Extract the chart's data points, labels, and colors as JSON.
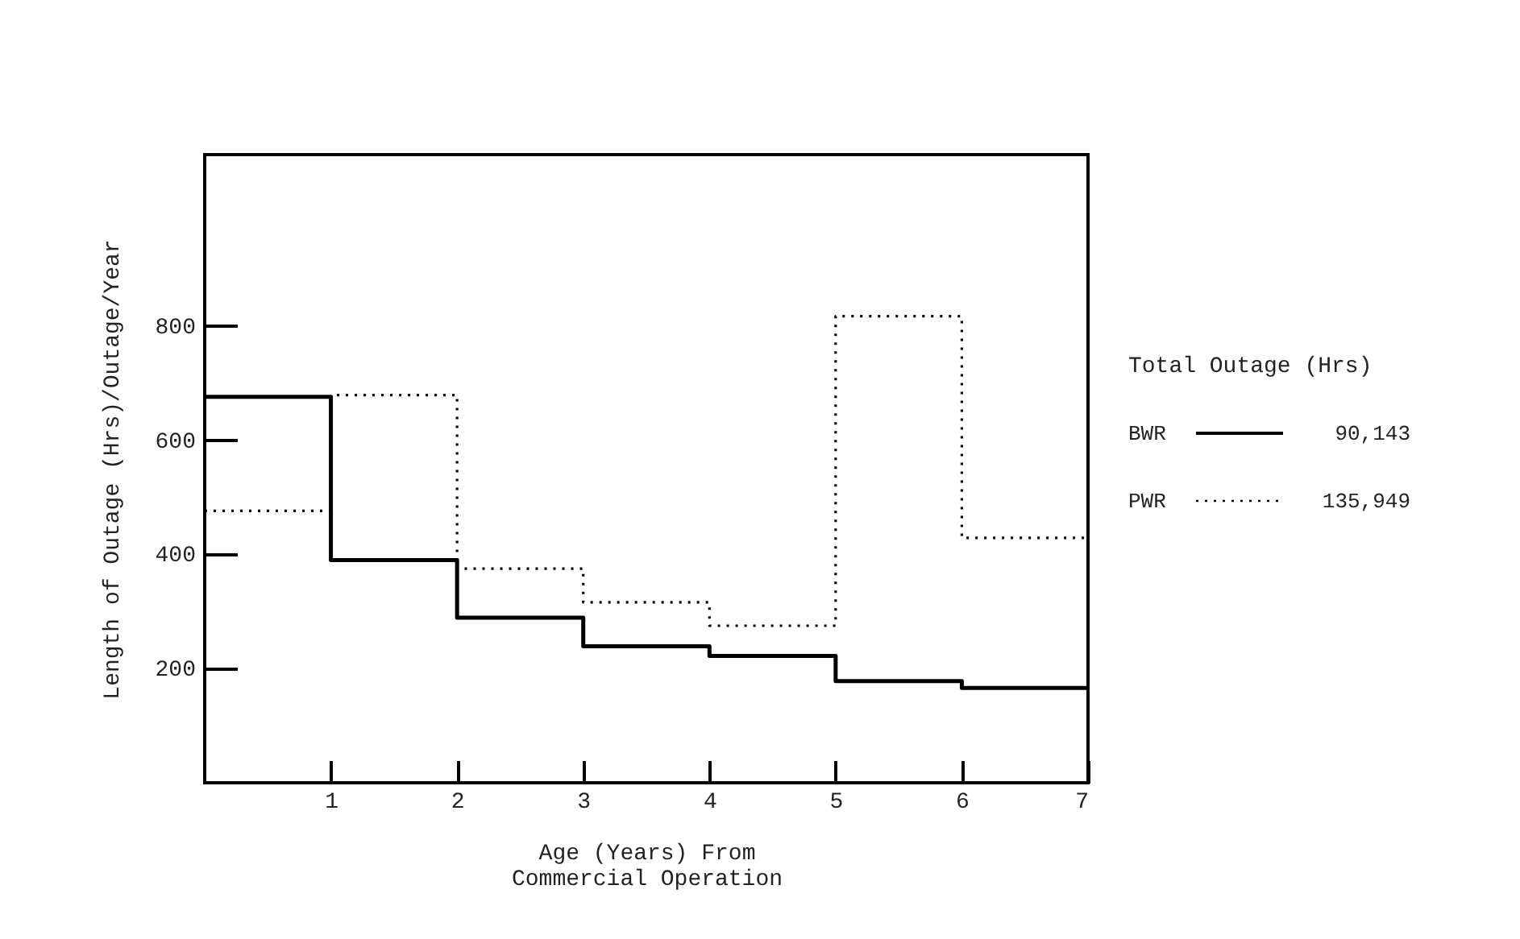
{
  "chart_data": {
    "type": "step",
    "xlabel": "Age (Years) From\nCommercial Operation",
    "ylabel": "Length of Outage (Hrs)/Outage/Year",
    "legend_title": "Total Outage (Hrs)",
    "x": [
      0,
      1,
      2,
      3,
      4,
      5,
      6,
      7
    ],
    "series": [
      {
        "name": "BWR",
        "color": "#000000",
        "line_style": "solid",
        "values": [
          676,
          390,
          289,
          239,
          222,
          178,
          166,
          166
        ]
      },
      {
        "name": "PWR",
        "color": "#000000",
        "line_style": "dotted",
        "values": [
          476,
          679,
          375,
          316,
          275,
          817,
          429,
          429
        ]
      }
    ],
    "annotations": [
      "90,143",
      "135,949"
    ],
    "xlim": [
      0,
      7
    ],
    "xticks": [
      1,
      2,
      3,
      4,
      5,
      6,
      7
    ],
    "ylim": [
      0,
      1100
    ],
    "yticks": [
      200,
      400,
      600,
      800
    ],
    "grid": false,
    "legend": "right",
    "marker": "none"
  }
}
